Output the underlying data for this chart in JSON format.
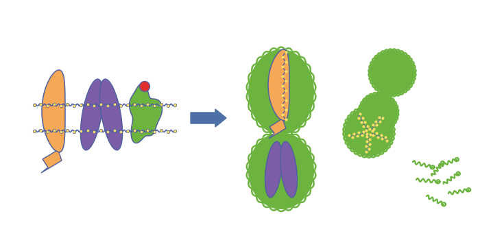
{
  "bg_color": "#ffffff",
  "orange": "#F5A855",
  "purple": "#7B5EA7",
  "green": "#6DB33F",
  "blue_arrow": "#4C6FA5",
  "red": "#E03030",
  "yellow": "#FFE066",
  "membrane_blue": "#5060A0",
  "figsize": [
    7.0,
    3.44
  ],
  "dpi": 100
}
